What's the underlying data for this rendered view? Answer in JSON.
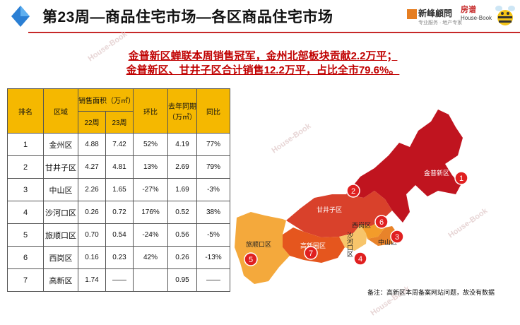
{
  "header": {
    "title": "第23周—商品住宅市场—各区商品住宅市场",
    "brand_left": "新峰顧問",
    "brand_left_sub": "专业服务 · 地产专家",
    "brand_right": "房谱",
    "brand_right_sub": "House-Book"
  },
  "headline": {
    "line1": "金普新区蝉联本周销售冠军，金州北部板块贡献2.2万平；",
    "line2": "金普新区、甘井子区合计销售12.2万平，占比全市79.6%。"
  },
  "table": {
    "headers": {
      "rank": "排名",
      "area": "区域",
      "sales_area": "销售面积（万㎡）",
      "week22": "22周",
      "week23": "23周",
      "ring": "环比",
      "last_year": "去年同期（万㎡）",
      "yoy": "同比"
    },
    "rows": [
      {
        "rank": "1",
        "area": "金州区",
        "w22": "4.88",
        "w23": "7.42",
        "ring": "52%",
        "ly": "4.19",
        "yoy": "77%"
      },
      {
        "rank": "2",
        "area": "甘井子区",
        "w22": "4.27",
        "w23": "4.81",
        "ring": "13%",
        "ly": "2.69",
        "yoy": "79%"
      },
      {
        "rank": "3",
        "area": "中山区",
        "w22": "2.26",
        "w23": "1.65",
        "ring": "-27%",
        "ly": "1.69",
        "yoy": "-3%"
      },
      {
        "rank": "4",
        "area": "沙河口区",
        "w22": "0.26",
        "w23": "0.72",
        "ring": "176%",
        "ly": "0.52",
        "yoy": "38%"
      },
      {
        "rank": "5",
        "area": "旅顺口区",
        "w22": "0.70",
        "w23": "0.54",
        "ring": "-24%",
        "ly": "0.56",
        "yoy": "-5%"
      },
      {
        "rank": "6",
        "area": "西岗区",
        "w22": "0.16",
        "w23": "0.23",
        "ring": "42%",
        "ly": "0.26",
        "yoy": "-13%"
      },
      {
        "rank": "7",
        "area": "高新区",
        "w22": "1.74",
        "w23": "——",
        "ring": "",
        "ly": "0.95",
        "yoy": "——"
      }
    ]
  },
  "map": {
    "labels": {
      "jinpu": "金普新区",
      "ganjingzi": "甘井子区",
      "xigang": "西岗区",
      "shahekou": "沙河口区",
      "zhongshan": "中山区",
      "lushunkou": "旅顺口区",
      "gaoxin": "高新园区"
    },
    "badges": {
      "jinpu": "1",
      "ganjingzi": "2",
      "zhongshan": "3",
      "shahekou": "4",
      "lushunkou": "5",
      "xigang": "6",
      "gaoxin": "7"
    },
    "colors": {
      "jinpu": "#c0141f",
      "ganjingzi": "#d9412b",
      "gaoxin": "#e5561e",
      "lushunkou": "#f4a93c",
      "xigang": "#f39c2a",
      "zhongshan": "#e8832a",
      "shahekou": "#f7c56b",
      "badge": "#e02020"
    }
  },
  "note": "备注：高新区本周备案网站问题，故没有数据",
  "watermarks": [
    "房谱",
    "House-Book"
  ]
}
